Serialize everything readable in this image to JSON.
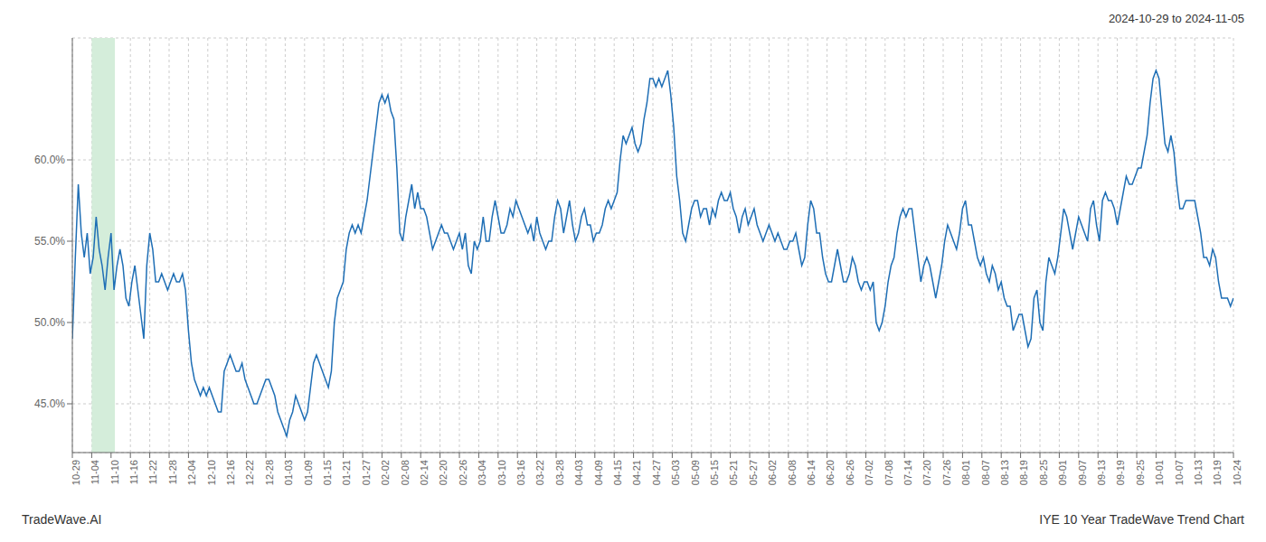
{
  "chart_data": {
    "type": "line",
    "title": "IYE 10 Year TradeWave Trend Chart",
    "subtitle": "2024-10-29 to 2024-11-05",
    "annotations": [
      "TradeWave.AI"
    ],
    "color": "#1e6eb5",
    "grid": true,
    "highlight": {
      "start": 1,
      "end": 2.2,
      "color": "#d4edda"
    },
    "xlim": [
      0,
      60
    ],
    "xticks": [
      {
        "value": 0,
        "label": "10-29"
      },
      {
        "value": 1,
        "label": "11-04"
      },
      {
        "value": 2,
        "label": "11-10"
      },
      {
        "value": 3,
        "label": "11-16"
      },
      {
        "value": 4,
        "label": "11-22"
      },
      {
        "value": 5,
        "label": "11-28"
      },
      {
        "value": 6,
        "label": "12-04"
      },
      {
        "value": 7,
        "label": "12-10"
      },
      {
        "value": 8,
        "label": "12-16"
      },
      {
        "value": 9,
        "label": "12-22"
      },
      {
        "value": 10,
        "label": "12-28"
      },
      {
        "value": 11,
        "label": "01-03"
      },
      {
        "value": 12,
        "label": "01-09"
      },
      {
        "value": 13,
        "label": "01-15"
      },
      {
        "value": 14,
        "label": "01-21"
      },
      {
        "value": 15,
        "label": "01-27"
      },
      {
        "value": 16,
        "label": "02-02"
      },
      {
        "value": 17,
        "label": "02-08"
      },
      {
        "value": 18,
        "label": "02-14"
      },
      {
        "value": 19,
        "label": "02-20"
      },
      {
        "value": 20,
        "label": "02-26"
      },
      {
        "value": 21,
        "label": "03-04"
      },
      {
        "value": 22,
        "label": "03-10"
      },
      {
        "value": 23,
        "label": "03-16"
      },
      {
        "value": 24,
        "label": "03-22"
      },
      {
        "value": 25,
        "label": "03-28"
      },
      {
        "value": 26,
        "label": "04-03"
      },
      {
        "value": 27,
        "label": "04-09"
      },
      {
        "value": 28,
        "label": "04-15"
      },
      {
        "value": 29,
        "label": "04-21"
      },
      {
        "value": 30,
        "label": "04-27"
      },
      {
        "value": 31,
        "label": "05-03"
      },
      {
        "value": 32,
        "label": "05-09"
      },
      {
        "value": 33,
        "label": "05-15"
      },
      {
        "value": 34,
        "label": "05-21"
      },
      {
        "value": 35,
        "label": "05-27"
      },
      {
        "value": 36,
        "label": "06-02"
      },
      {
        "value": 37,
        "label": "06-08"
      },
      {
        "value": 38,
        "label": "06-14"
      },
      {
        "value": 39,
        "label": "06-20"
      },
      {
        "value": 40,
        "label": "06-26"
      },
      {
        "value": 41,
        "label": "07-02"
      },
      {
        "value": 42,
        "label": "07-08"
      },
      {
        "value": 43,
        "label": "07-14"
      },
      {
        "value": 44,
        "label": "07-20"
      },
      {
        "value": 45,
        "label": "07-26"
      },
      {
        "value": 46,
        "label": "08-01"
      },
      {
        "value": 47,
        "label": "08-07"
      },
      {
        "value": 48,
        "label": "08-13"
      },
      {
        "value": 49,
        "label": "08-19"
      },
      {
        "value": 50,
        "label": "08-25"
      },
      {
        "value": 51,
        "label": "09-01"
      },
      {
        "value": 52,
        "label": "09-07"
      },
      {
        "value": 53,
        "label": "09-13"
      },
      {
        "value": 54,
        "label": "09-19"
      },
      {
        "value": 55,
        "label": "09-25"
      },
      {
        "value": 56,
        "label": "10-01"
      },
      {
        "value": 57,
        "label": "10-07"
      },
      {
        "value": 58,
        "label": "10-13"
      },
      {
        "value": 59,
        "label": "10-19"
      },
      {
        "value": 60,
        "label": "10-24"
      }
    ],
    "ylim": [
      42.0,
      67.5
    ],
    "yticks": [
      {
        "value": 45.0,
        "label": "45.0%"
      },
      {
        "value": 50.0,
        "label": "50.0%"
      },
      {
        "value": 55.0,
        "label": "55.0%"
      },
      {
        "value": 60.0,
        "label": "60.0%"
      }
    ],
    "values": [
      49.0,
      54.0,
      58.5,
      55.5,
      54.0,
      55.5,
      53.0,
      54.0,
      56.5,
      54.5,
      53.5,
      52.0,
      54.0,
      55.5,
      52.0,
      53.5,
      54.5,
      53.5,
      51.5,
      51.0,
      52.5,
      53.5,
      52.0,
      50.5,
      49.0,
      53.5,
      55.5,
      54.5,
      52.5,
      52.5,
      53.0,
      52.5,
      52.0,
      52.5,
      53.0,
      52.5,
      52.5,
      53.0,
      52.0,
      49.5,
      47.5,
      46.5,
      46.0,
      45.5,
      46.0,
      45.5,
      46.0,
      45.5,
      45.0,
      44.5,
      44.5,
      47.0,
      47.5,
      48.0,
      47.5,
      47.0,
      47.0,
      47.5,
      46.5,
      46.0,
      45.5,
      45.0,
      45.0,
      45.5,
      46.0,
      46.5,
      46.5,
      46.0,
      45.5,
      44.5,
      44.0,
      43.5,
      43.0,
      44.0,
      44.5,
      45.5,
      45.0,
      44.5,
      44.0,
      44.5,
      46.0,
      47.5,
      48.0,
      47.5,
      47.0,
      46.5,
      46.0,
      47.0,
      50.0,
      51.5,
      52.0,
      52.5,
      54.5,
      55.5,
      56.0,
      55.5,
      56.0,
      55.5,
      56.5,
      57.5,
      59.0,
      60.5,
      62.0,
      63.5,
      64.0,
      63.5,
      64.0,
      63.0,
      62.5,
      59.5,
      55.5,
      55.0,
      56.5,
      57.5,
      58.5,
      57.0,
      58.0,
      57.0,
      57.0,
      56.5,
      55.5,
      54.5,
      55.0,
      55.5,
      56.0,
      55.5,
      55.5,
      55.0,
      54.5,
      55.0,
      55.5,
      54.5,
      55.5,
      53.5,
      53.0,
      55.0,
      54.5,
      55.0,
      56.5,
      55.0,
      55.0,
      56.5,
      57.5,
      56.5,
      55.5,
      55.5,
      56.0,
      57.0,
      56.5,
      57.5,
      57.0,
      56.5,
      56.0,
      55.5,
      56.0,
      55.0,
      56.5,
      55.5,
      55.0,
      54.5,
      55.0,
      55.0,
      56.5,
      57.5,
      57.0,
      55.5,
      56.5,
      57.5,
      56.0,
      55.0,
      55.5,
      56.5,
      57.0,
      56.0,
      56.0,
      55.0,
      55.5,
      55.5,
      56.0,
      57.0,
      57.5,
      57.0,
      57.5,
      58.0,
      60.0,
      61.5,
      61.0,
      61.5,
      62.0,
      61.0,
      60.5,
      61.0,
      62.5,
      63.5,
      65.0,
      65.0,
      64.5,
      65.0,
      64.5,
      65.0,
      65.5,
      64.0,
      62.0,
      59.0,
      57.5,
      55.5,
      55.0,
      56.0,
      57.0,
      57.5,
      57.5,
      56.5,
      57.0,
      57.0,
      56.0,
      57.0,
      56.5,
      57.5,
      58.0,
      57.5,
      57.5,
      58.0,
      57.0,
      56.5,
      55.5,
      56.5,
      57.0,
      56.0,
      56.5,
      57.0,
      56.0,
      55.5,
      55.0,
      55.5,
      56.0,
      55.5,
      55.0,
      55.5,
      55.0,
      54.5,
      54.5,
      55.0,
      55.0,
      55.5,
      54.5,
      53.5,
      54.0,
      56.0,
      57.5,
      57.0,
      55.5,
      55.5,
      54.0,
      53.0,
      52.5,
      52.5,
      53.5,
      54.5,
      53.5,
      52.5,
      52.5,
      53.0,
      54.0,
      53.5,
      52.5,
      52.0,
      52.5,
      52.5,
      52.0,
      52.5,
      50.0,
      49.5,
      50.0,
      51.0,
      52.5,
      53.5,
      54.0,
      55.5,
      56.5,
      57.0,
      56.5,
      57.0,
      57.0,
      55.5,
      54.0,
      52.5,
      53.5,
      54.0,
      53.5,
      52.5,
      51.5,
      52.5,
      53.5,
      55.0,
      56.0,
      55.5,
      55.0,
      54.5,
      55.5,
      57.0,
      57.5,
      56.0,
      56.0,
      55.0,
      54.0,
      53.5,
      54.0,
      53.0,
      52.5,
      53.5,
      53.0,
      52.0,
      52.5,
      51.5,
      51.0,
      51.0,
      49.5,
      50.0,
      50.5,
      50.5,
      49.5,
      48.5,
      49.0,
      51.5,
      52.0,
      50.0,
      49.5,
      52.5,
      54.0,
      53.5,
      53.0,
      54.0,
      55.5,
      57.0,
      56.5,
      55.5,
      54.5,
      55.5,
      56.5,
      56.0,
      55.5,
      55.0,
      57.0,
      57.5,
      56.0,
      55.0,
      57.5,
      58.0,
      57.5,
      57.5,
      57.0,
      56.0,
      57.0,
      58.0,
      59.0,
      58.5,
      58.5,
      59.0,
      59.5,
      59.5,
      60.5,
      61.5,
      63.5,
      65.0,
      65.5,
      65.0,
      63.0,
      61.0,
      60.5,
      61.5,
      60.5,
      58.5,
      57.0,
      57.0,
      57.5,
      57.5,
      57.5,
      57.5,
      56.5,
      55.5,
      54.0,
      54.0,
      53.5,
      54.5,
      54.0,
      52.5,
      51.5,
      51.5,
      51.5,
      51.0,
      51.5
    ]
  }
}
